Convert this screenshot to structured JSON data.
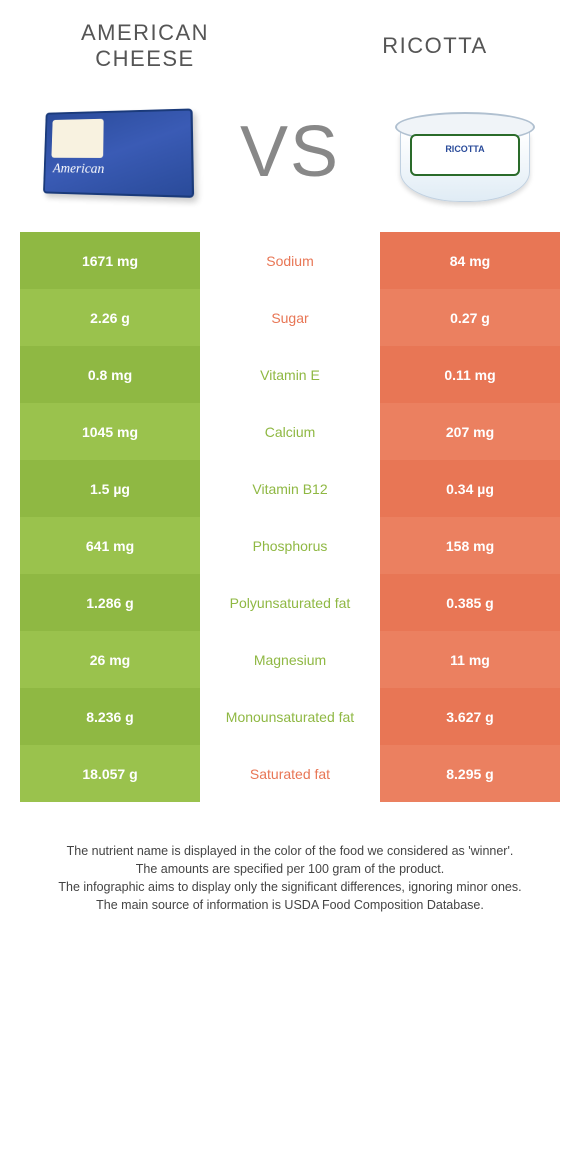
{
  "colors": {
    "green_a": "#8fb843",
    "green_b": "#9ac24d",
    "orange_a": "#e87655",
    "orange_b": "#eb8060"
  },
  "left": {
    "title": "AMERICAN CHEESE",
    "color": "#8fb843"
  },
  "right": {
    "title": "RICOTTA",
    "color": "#e87655"
  },
  "vs": "VS",
  "ricotta_label": "RICOTTA",
  "rows": [
    {
      "label": "Sodium",
      "left": "1671 mg",
      "right": "84 mg",
      "winner": "right"
    },
    {
      "label": "Sugar",
      "left": "2.26 g",
      "right": "0.27 g",
      "winner": "right"
    },
    {
      "label": "Vitamin E",
      "left": "0.8 mg",
      "right": "0.11 mg",
      "winner": "left"
    },
    {
      "label": "Calcium",
      "left": "1045 mg",
      "right": "207 mg",
      "winner": "left"
    },
    {
      "label": "Vitamin B12",
      "left": "1.5 µg",
      "right": "0.34 µg",
      "winner": "left"
    },
    {
      "label": "Phosphorus",
      "left": "641 mg",
      "right": "158 mg",
      "winner": "left"
    },
    {
      "label": "Polyunsaturated fat",
      "left": "1.286 g",
      "right": "0.385 g",
      "winner": "left"
    },
    {
      "label": "Magnesium",
      "left": "26 mg",
      "right": "11 mg",
      "winner": "left"
    },
    {
      "label": "Monounsaturated fat",
      "left": "8.236 g",
      "right": "3.627 g",
      "winner": "left"
    },
    {
      "label": "Saturated fat",
      "left": "18.057 g",
      "right": "8.295 g",
      "winner": "right"
    }
  ],
  "footnotes": [
    "The nutrient name is displayed in the color of the food we considered as 'winner'.",
    "The amounts are specified per 100 gram of the product.",
    "The infographic aims to display only the significant differences, ignoring minor ones.",
    "The main source of information is USDA Food Composition Database."
  ]
}
